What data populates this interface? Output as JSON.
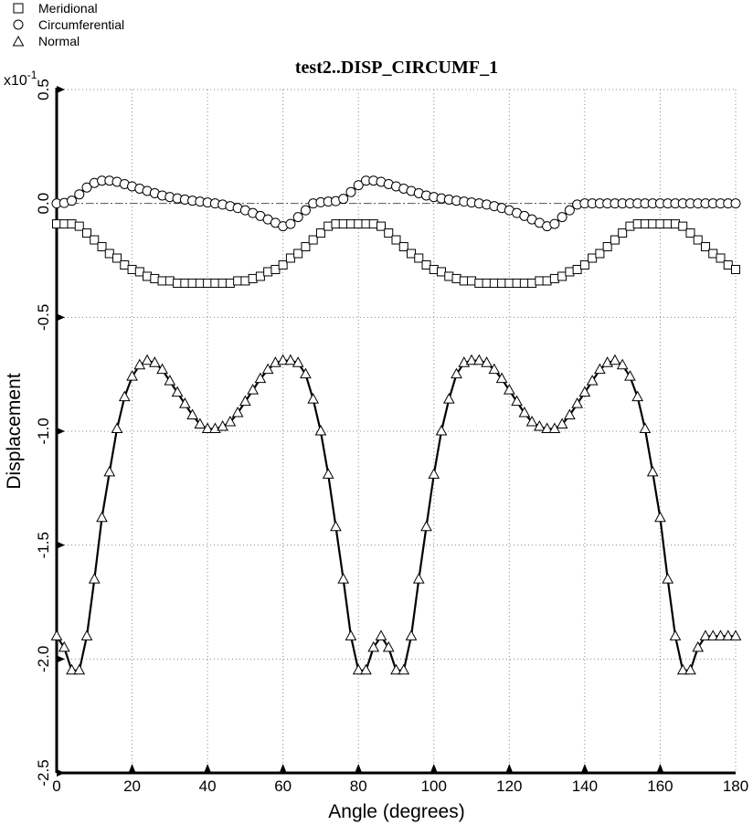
{
  "chart_data": {
    "type": "line",
    "title": "test2..DISP_CIRCUMF_1",
    "xlabel": "Angle (degrees)",
    "ylabel": "Displacement",
    "y_multiplier_base": "x10",
    "y_multiplier_exp": "-1",
    "xlim": [
      0,
      180
    ],
    "ylim": [
      -2.5,
      0.5
    ],
    "x_ticks": [
      "0",
      "20",
      "40",
      "60",
      "80",
      "100",
      "120",
      "140",
      "160",
      "180"
    ],
    "y_ticks": [
      "0.5",
      "0.0",
      "-0.5",
      "-1.0",
      "-1.5",
      "-2.0",
      "-2.5"
    ],
    "grid": true,
    "legend_position": "top-left",
    "x": [
      0,
      2,
      4,
      6,
      8,
      10,
      12,
      14,
      16,
      18,
      20,
      22,
      24,
      26,
      28,
      30,
      32,
      34,
      36,
      38,
      40,
      42,
      44,
      46,
      48,
      50,
      52,
      54,
      56,
      58,
      60,
      62,
      64,
      66,
      68,
      70,
      72,
      74,
      76,
      78,
      80,
      82,
      84,
      86,
      88,
      90,
      92,
      94,
      96,
      98,
      100,
      102,
      104,
      106,
      108,
      110,
      112,
      114,
      116,
      118,
      120,
      122,
      124,
      126,
      128,
      130,
      132,
      134,
      136,
      138,
      140,
      142,
      144,
      146,
      148,
      150,
      152,
      154,
      156,
      158,
      160,
      162,
      164,
      166,
      168,
      170,
      172,
      174,
      176,
      178,
      180
    ],
    "series": [
      {
        "name": "Meridional",
        "marker": "square",
        "values": [
          -0.09,
          -0.09,
          -0.09,
          -0.1,
          -0.13,
          -0.16,
          -0.19,
          -0.22,
          -0.24,
          -0.27,
          -0.29,
          -0.3,
          -0.32,
          -0.33,
          -0.34,
          -0.34,
          -0.35,
          -0.35,
          -0.35,
          -0.35,
          -0.35,
          -0.35,
          -0.35,
          -0.35,
          -0.34,
          -0.34,
          -0.33,
          -0.32,
          -0.3,
          -0.29,
          -0.27,
          -0.24,
          -0.22,
          -0.19,
          -0.16,
          -0.13,
          -0.1,
          -0.09,
          -0.09,
          -0.09,
          -0.09,
          -0.09,
          -0.09,
          -0.1,
          -0.13,
          -0.16,
          -0.19,
          -0.22,
          -0.24,
          -0.27,
          -0.29,
          -0.3,
          -0.32,
          -0.33,
          -0.34,
          -0.34,
          -0.35,
          -0.35,
          -0.35,
          -0.35,
          -0.35,
          -0.35,
          -0.35,
          -0.35,
          -0.34,
          -0.34,
          -0.33,
          -0.32,
          -0.3,
          -0.29,
          -0.27,
          -0.24,
          -0.22,
          -0.19,
          -0.16,
          -0.13,
          -0.1,
          -0.09,
          -0.09,
          -0.09,
          -0.09,
          -0.09,
          -0.09,
          -0.1,
          -0.13,
          -0.16,
          -0.19,
          -0.22,
          -0.24,
          -0.27,
          -0.29
        ]
      },
      {
        "name": "Circumferential",
        "marker": "circle",
        "values": [
          0.0,
          0.002,
          0.012,
          0.04,
          0.07,
          0.09,
          0.1,
          0.1,
          0.095,
          0.085,
          0.075,
          0.065,
          0.055,
          0.045,
          0.035,
          0.028,
          0.022,
          0.017,
          0.012,
          0.008,
          0.004,
          0.0,
          -0.005,
          -0.012,
          -0.02,
          -0.03,
          -0.042,
          -0.055,
          -0.07,
          -0.085,
          -0.1,
          -0.09,
          -0.06,
          -0.03,
          0.0,
          0.005,
          0.008,
          0.01,
          0.02,
          0.05,
          0.08,
          0.1,
          0.1,
          0.095,
          0.085,
          0.075,
          0.065,
          0.055,
          0.045,
          0.035,
          0.028,
          0.022,
          0.017,
          0.012,
          0.008,
          0.004,
          0.0,
          -0.005,
          -0.012,
          -0.02,
          -0.03,
          -0.042,
          -0.055,
          -0.07,
          -0.085,
          -0.1,
          -0.09,
          -0.06,
          -0.03,
          -0.005,
          0.0,
          0.0,
          0.0,
          0.0,
          0.0,
          0.0,
          0.0,
          0.0,
          0.0,
          0.0,
          0.0,
          0.0,
          0.0,
          0.0,
          0.0,
          0.0,
          0.0,
          0.0,
          0.0,
          0.0,
          0.0
        ]
      },
      {
        "name": "Normal",
        "marker": "triangle",
        "values": [
          -1.9,
          -1.95,
          -2.05,
          -2.05,
          -1.9,
          -1.65,
          -1.38,
          -1.18,
          -0.99,
          -0.85,
          -0.76,
          -0.71,
          -0.69,
          -0.7,
          -0.73,
          -0.78,
          -0.83,
          -0.88,
          -0.93,
          -0.97,
          -0.99,
          -0.99,
          -0.98,
          -0.96,
          -0.92,
          -0.87,
          -0.82,
          -0.77,
          -0.73,
          -0.7,
          -0.69,
          -0.69,
          -0.7,
          -0.75,
          -0.86,
          -1.0,
          -1.19,
          -1.42,
          -1.65,
          -1.9,
          -2.05,
          -2.05,
          -1.95,
          -1.9,
          -1.95,
          -2.05,
          -2.05,
          -1.9,
          -1.65,
          -1.42,
          -1.19,
          -1.0,
          -0.86,
          -0.75,
          -0.7,
          -0.69,
          -0.69,
          -0.7,
          -0.73,
          -0.77,
          -0.82,
          -0.87,
          -0.92,
          -0.96,
          -0.98,
          -0.99,
          -0.99,
          -0.97,
          -0.93,
          -0.88,
          -0.83,
          -0.78,
          -0.73,
          -0.7,
          -0.69,
          -0.71,
          -0.76,
          -0.85,
          -0.99,
          -1.18,
          -1.38,
          -1.65,
          -1.9,
          -2.05,
          -2.05,
          -1.95,
          -1.9,
          -1.9,
          -1.9,
          -1.9,
          -1.9
        ]
      }
    ]
  }
}
